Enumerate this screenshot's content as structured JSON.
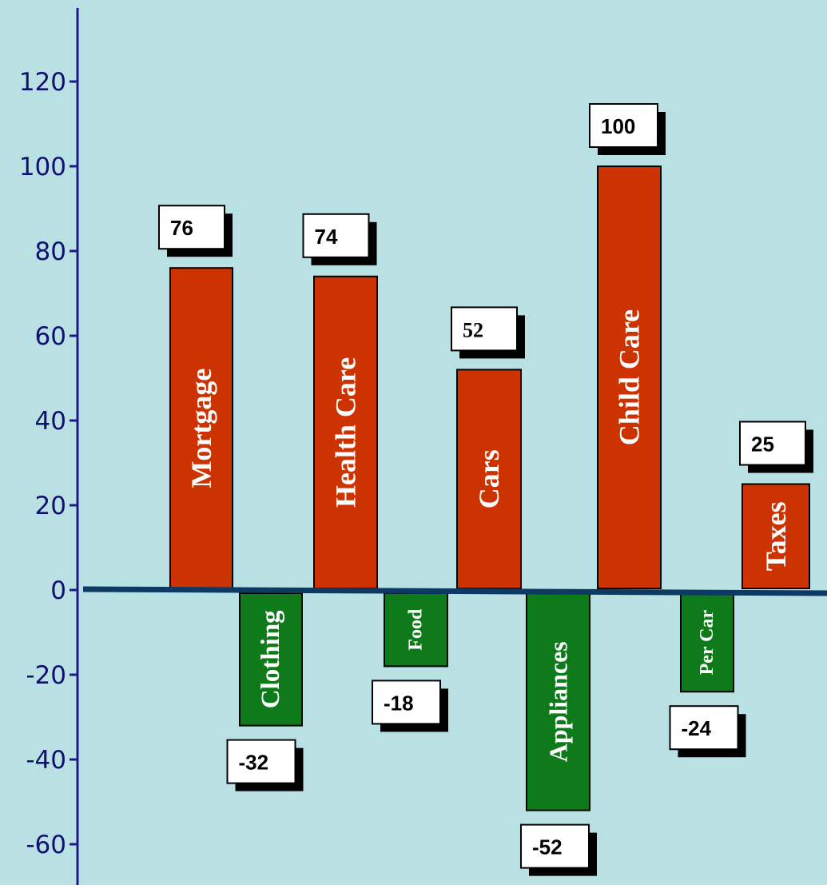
{
  "colors": {
    "background": "#b9e0e3",
    "positive": "#cc3300",
    "negative": "#0f7a1a",
    "axis": "#1a1a8c",
    "baseline": "#0d3a63"
  },
  "chart_data": {
    "type": "bar",
    "title": "",
    "xlabel": "",
    "ylabel": "",
    "ylim": [
      -70,
      135
    ],
    "yticks": [
      120,
      100,
      80,
      60,
      40,
      20,
      0,
      -20,
      -40,
      -60
    ],
    "grid": false,
    "categories": [
      "Mortgage",
      "Clothing",
      "Health Care",
      "Food",
      "Cars",
      "Appliances",
      "Child Care",
      "Per Car",
      "Taxes"
    ],
    "values": [
      76,
      -32,
      74,
      -18,
      52,
      -52,
      100,
      -24,
      25
    ],
    "data_labels": [
      "76",
      "-32",
      "74",
      "-18",
      "52",
      "-52",
      "100",
      "-24",
      "25"
    ]
  }
}
